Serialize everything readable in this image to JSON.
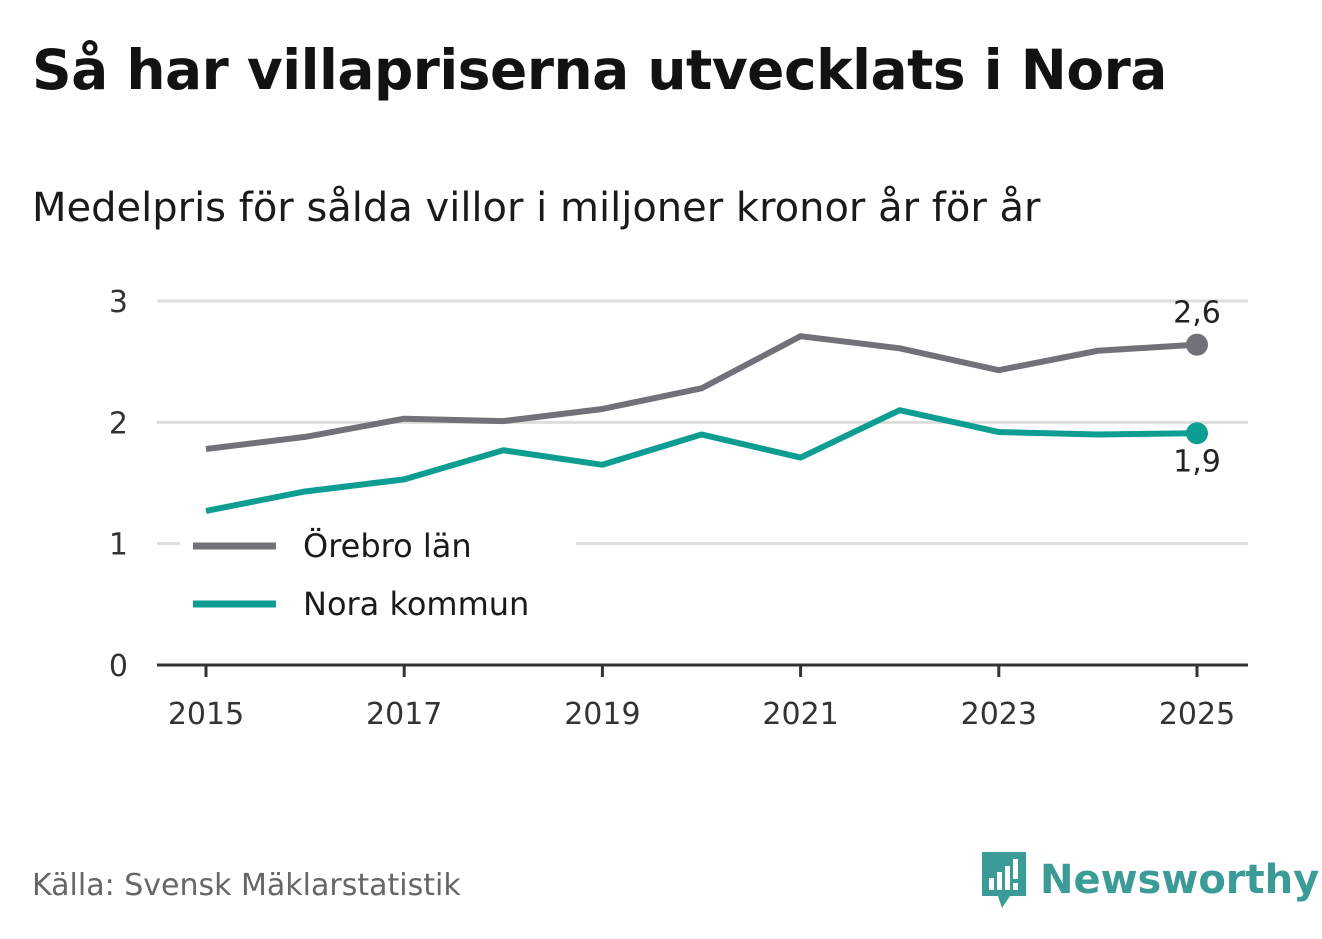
{
  "title": "Så har villapriserna utvecklats i Nora",
  "subtitle": "Medelpris för sålda villor i miljoner kronor år för år",
  "source": "Källa: Svensk Mäklarstatistik",
  "brand": {
    "name": "Newsworthy",
    "icon": "newsworthy-logo-icon",
    "color": "#3a9b97"
  },
  "chart_data": {
    "type": "line",
    "title": "Så har villapriserna utvecklats i Nora",
    "subtitle": "Medelpris för sålda villor i miljoner kronor år för år",
    "xlabel": "",
    "ylabel": "",
    "x": [
      2015,
      2016,
      2017,
      2018,
      2019,
      2020,
      2021,
      2022,
      2023,
      2024,
      2025
    ],
    "xticks": [
      "2015",
      "2017",
      "2019",
      "2021",
      "2023",
      "2025"
    ],
    "yticks": [
      "0",
      "1",
      "2",
      "3"
    ],
    "ylim": [
      0,
      3
    ],
    "xlim": [
      2015,
      2025
    ],
    "grid": true,
    "legend_position": "bottom-left",
    "series": [
      {
        "name": "Örebro län",
        "color": "#727078",
        "values": [
          1.78,
          1.88,
          2.03,
          2.01,
          2.11,
          2.28,
          2.71,
          2.61,
          2.43,
          2.59,
          2.64
        ],
        "end_label": "2,6"
      },
      {
        "name": "Nora kommun",
        "color": "#0e9d93",
        "values": [
          1.27,
          1.43,
          1.53,
          1.77,
          1.65,
          1.9,
          1.71,
          2.1,
          1.92,
          1.9,
          1.91
        ],
        "end_label": "1,9"
      }
    ]
  }
}
